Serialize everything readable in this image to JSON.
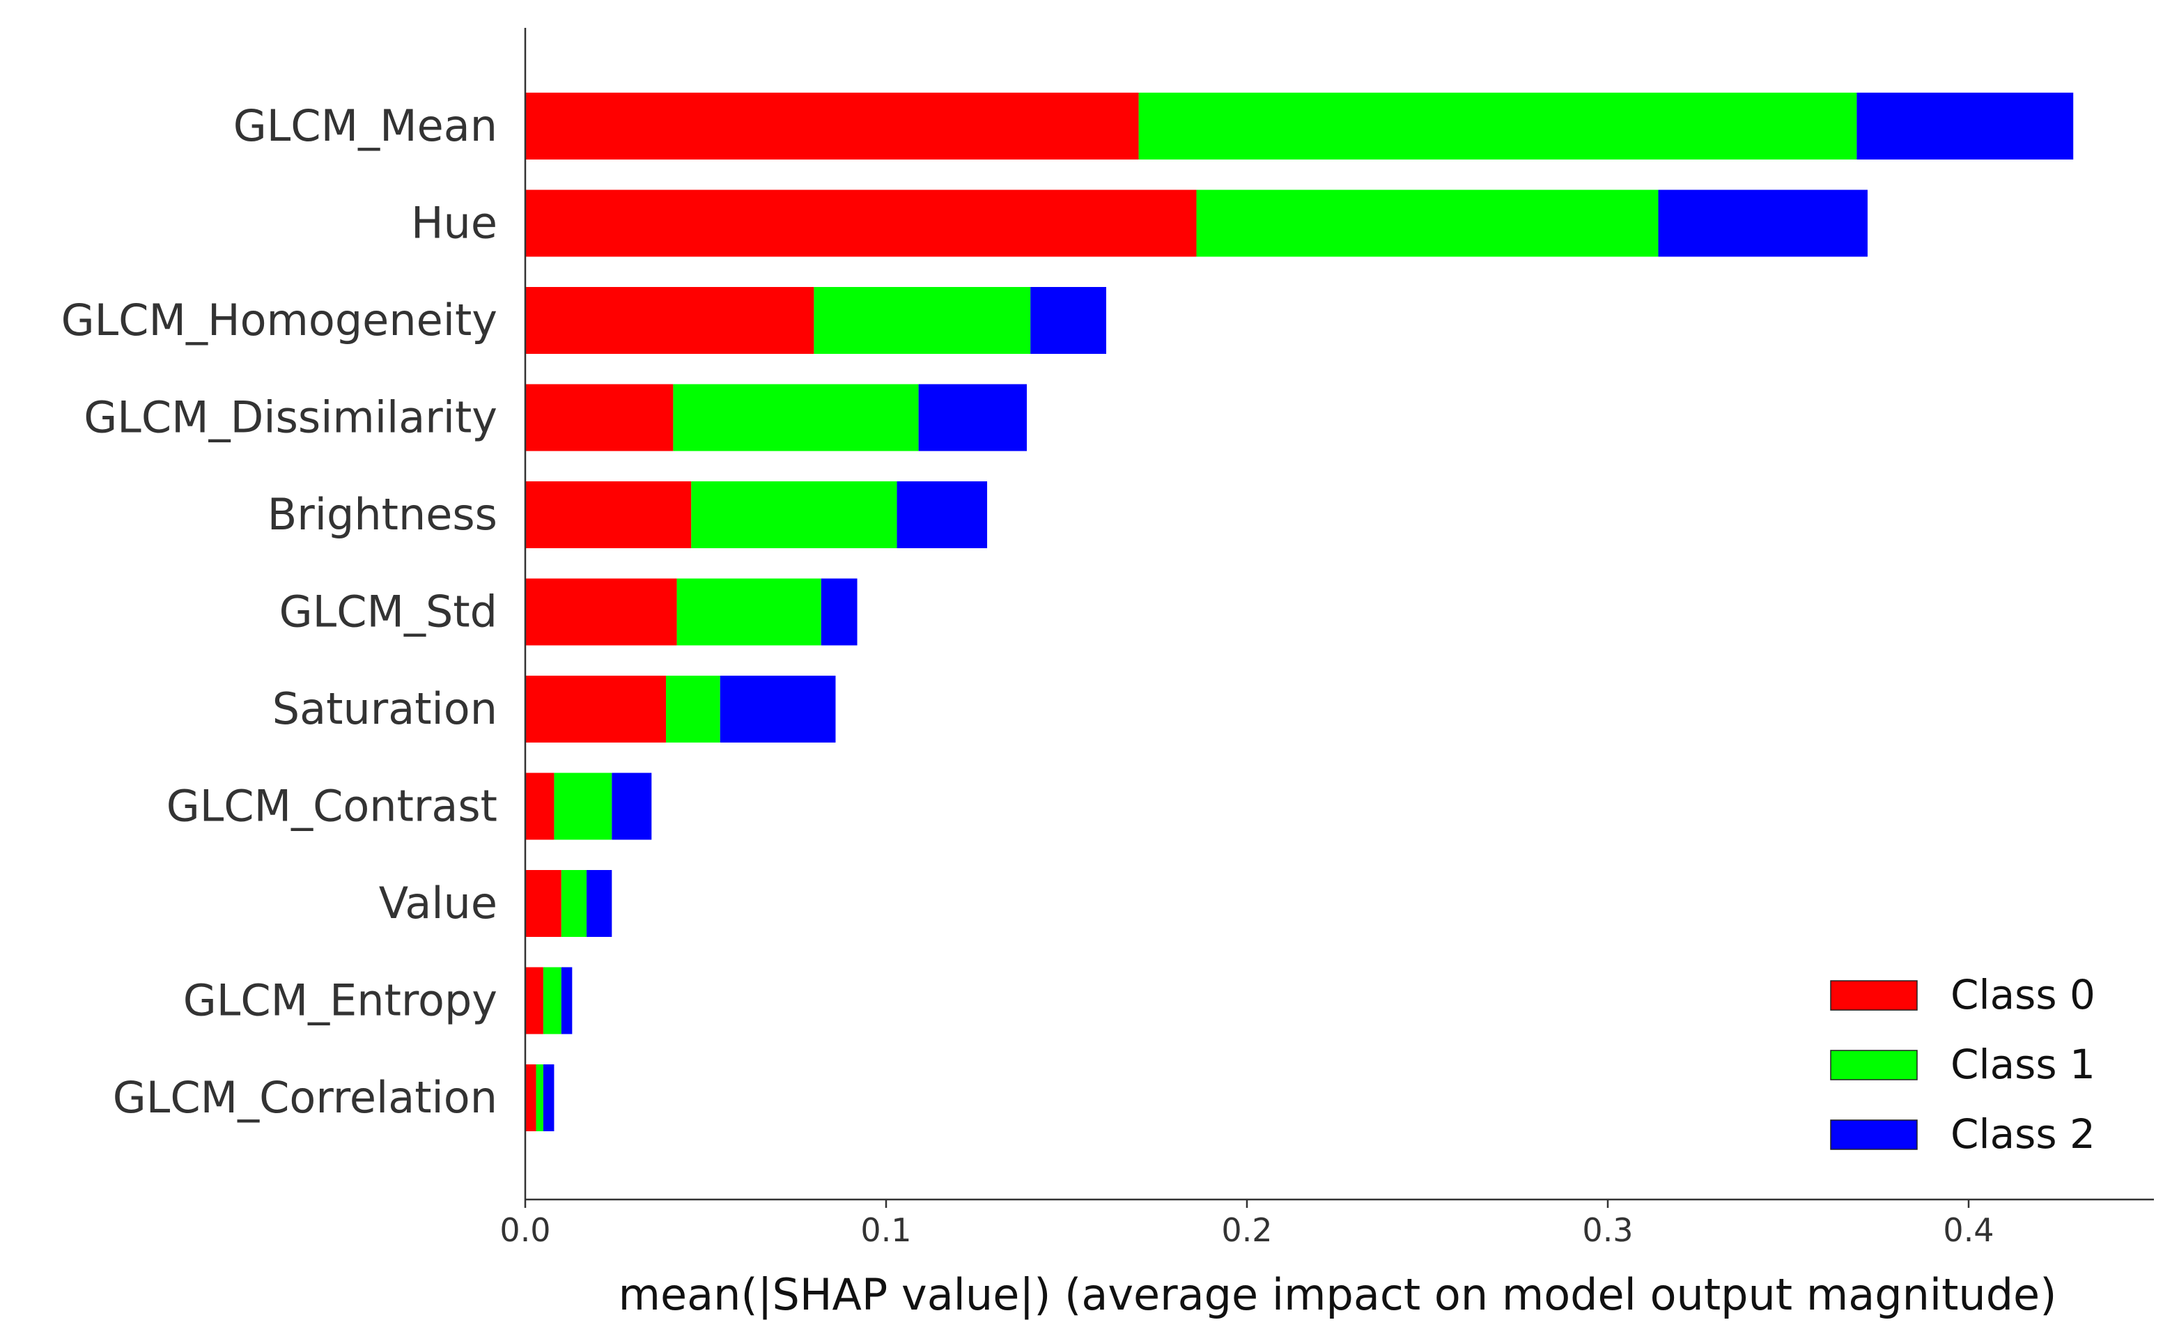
{
  "chart_data": {
    "type": "bar",
    "orientation": "horizontal",
    "stacked": true,
    "categories": [
      "GLCM_Mean",
      "Hue",
      "GLCM_Homogeneity",
      "GLCM_Dissimilarity",
      "Brightness",
      "GLCM_Std",
      "Saturation",
      "GLCM_Contrast",
      "Value",
      "GLCM_Entropy",
      "GLCM_Correlation"
    ],
    "series": [
      {
        "name": "Class 0",
        "color": "#ff0000",
        "values": [
          0.17,
          0.186,
          0.08,
          0.041,
          0.046,
          0.042,
          0.039,
          0.008,
          0.01,
          0.005,
          0.003
        ]
      },
      {
        "name": "Class 1",
        "color": "#00ff00",
        "values": [
          0.199,
          0.128,
          0.06,
          0.068,
          0.057,
          0.04,
          0.015,
          0.016,
          0.007,
          0.005,
          0.002
        ]
      },
      {
        "name": "Class 2",
        "color": "#0000ff",
        "values": [
          0.06,
          0.058,
          0.021,
          0.03,
          0.025,
          0.01,
          0.032,
          0.011,
          0.007,
          0.003,
          0.003
        ]
      }
    ],
    "xlabel": "mean(|SHAP value|) (average impact on model output magnitude)",
    "ylabel": "",
    "xlim": [
      0.0,
      0.45
    ],
    "xticks": [
      0.0,
      0.1,
      0.2,
      0.3,
      0.4
    ],
    "xtick_labels": [
      "0.0",
      "0.1",
      "0.2",
      "0.3",
      "0.4"
    ],
    "grid": false,
    "legend_position": "bottom-right"
  }
}
